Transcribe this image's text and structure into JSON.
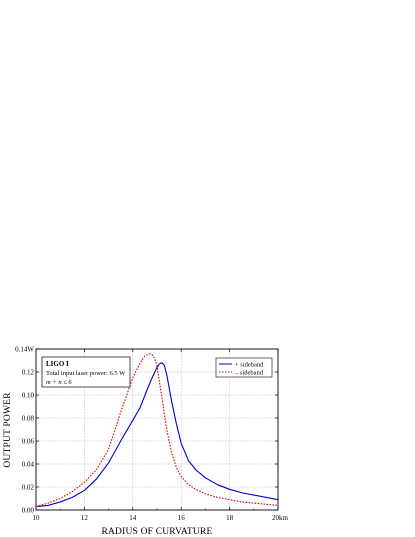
{
  "chart_data": {
    "type": "line",
    "xlabel": "RADIUS OF CURVATURE",
    "ylabel": "OUTPUT POWER",
    "xlim": [
      10,
      20
    ],
    "ylim": [
      0,
      0.14
    ],
    "x_ticks": [
      "10",
      "12",
      "14",
      "16",
      "18",
      "20km"
    ],
    "y_ticks": [
      "0.00",
      "0.02",
      "0.04",
      "0.06",
      "0.08",
      "0.10",
      "0.12",
      "0.14W"
    ],
    "grid": true,
    "legend_position": "top-right",
    "annotation": {
      "title": "LIGO I",
      "lines": [
        "Total input laser power: 6.5 W",
        "m + n ≤ 6"
      ]
    },
    "series": [
      {
        "name": "+ sideband",
        "color": "#0000cc",
        "style": "solid",
        "x": [
          10,
          10.5,
          11,
          11.5,
          12,
          12.5,
          13,
          13.5,
          14,
          14.3,
          14.6,
          14.8,
          15,
          15.1,
          15.2,
          15.3,
          15.4,
          15.6,
          15.8,
          16,
          16.3,
          16.6,
          17,
          17.5,
          18,
          18.5,
          19,
          19.5,
          20
        ],
        "y": [
          0.003,
          0.004,
          0.007,
          0.011,
          0.017,
          0.027,
          0.041,
          0.06,
          0.078,
          0.089,
          0.105,
          0.115,
          0.124,
          0.127,
          0.128,
          0.126,
          0.118,
          0.095,
          0.075,
          0.058,
          0.043,
          0.035,
          0.028,
          0.022,
          0.018,
          0.015,
          0.013,
          0.011,
          0.009
        ]
      },
      {
        "name": "– sideband",
        "color": "#dd0000",
        "style": "dotted",
        "x": [
          10,
          10.5,
          11,
          11.5,
          12,
          12.5,
          13,
          13.5,
          14,
          14.3,
          14.5,
          14.7,
          14.8,
          14.9,
          15,
          15.2,
          15.4,
          15.6,
          15.8,
          16,
          16.3,
          16.6,
          17,
          17.5,
          18,
          18.5,
          19,
          19.5,
          20
        ],
        "y": [
          0.003,
          0.006,
          0.01,
          0.016,
          0.024,
          0.035,
          0.053,
          0.085,
          0.115,
          0.128,
          0.134,
          0.136,
          0.135,
          0.132,
          0.125,
          0.098,
          0.07,
          0.05,
          0.037,
          0.029,
          0.022,
          0.018,
          0.014,
          0.011,
          0.009,
          0.007,
          0.006,
          0.005,
          0.004
        ]
      }
    ]
  }
}
